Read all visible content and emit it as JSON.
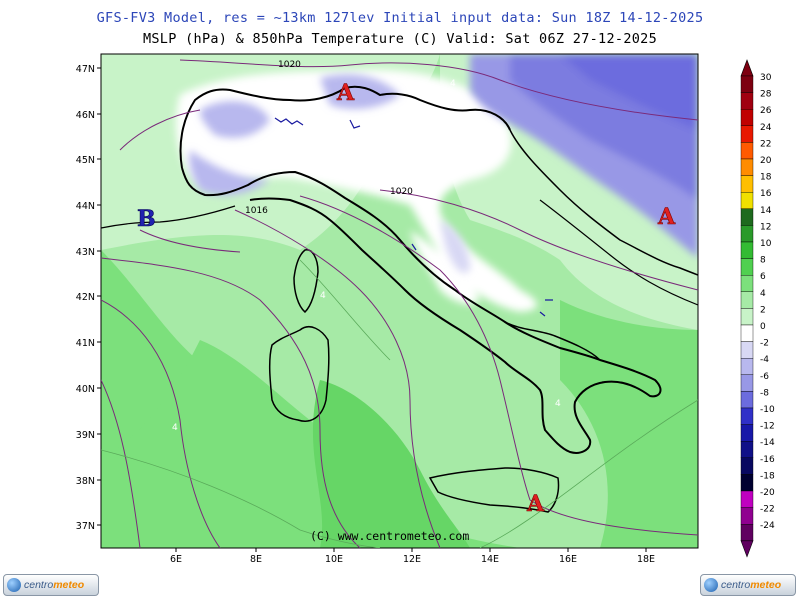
{
  "header": {
    "line1": "GFS-FV3 Model, res = ~13km 127lev   Initial input data: Sun 18Z 14-12-2025",
    "line2": "MSLP (hPa) & 850hPa Temperature (C)  Valid: Sat 06Z 27-12-2025"
  },
  "map": {
    "lat_labels": [
      "47N",
      "46N",
      "45N",
      "44N",
      "43N",
      "42N",
      "41N",
      "40N",
      "39N",
      "38N",
      "37N"
    ],
    "lon_labels": [
      "6E",
      "8E",
      "10E",
      "12E",
      "14E",
      "16E",
      "18E"
    ],
    "isobar_labels": [
      "1020",
      "1020",
      "1016"
    ],
    "temp_contour_labels": [
      "4",
      "4",
      "4",
      "4"
    ],
    "pressure_centers": [
      {
        "label": "A",
        "kind": "high"
      },
      {
        "label": "A",
        "kind": "high"
      },
      {
        "label": "A",
        "kind": "high"
      },
      {
        "label": "B",
        "kind": "low"
      }
    ],
    "watermark": "(C) www.centrometeo.com"
  },
  "legend": {
    "values": [
      "30",
      "28",
      "26",
      "24",
      "22",
      "20",
      "18",
      "16",
      "14",
      "12",
      "10",
      "8",
      "6",
      "4",
      "2",
      "0",
      "-2",
      "-4",
      "-6",
      "-8",
      "-10",
      "-12",
      "-14",
      "-16",
      "-18",
      "-20",
      "-22",
      "-24"
    ],
    "colors": [
      "#7d0010",
      "#a00010",
      "#c00000",
      "#e81800",
      "#ff5a00",
      "#ff8c00",
      "#ffbf00",
      "#f0e000",
      "#1e6a1e",
      "#2a9a2a",
      "#33bb33",
      "#50d050",
      "#7ce07c",
      "#a6eaa6",
      "#c8f3c8",
      "#ffffff",
      "#d8d8f4",
      "#b8b8ee",
      "#9898e6",
      "#6c6cde",
      "#3030c8",
      "#1818a8",
      "#101088",
      "#080860",
      "#000030",
      "#c000c0",
      "#900090",
      "#600060"
    ]
  },
  "footer": {
    "logo_left": {
      "brand1": "centro",
      "brand2": "meteo"
    },
    "logo_right": {
      "brand1": "centro",
      "brand2": "meteo"
    }
  }
}
